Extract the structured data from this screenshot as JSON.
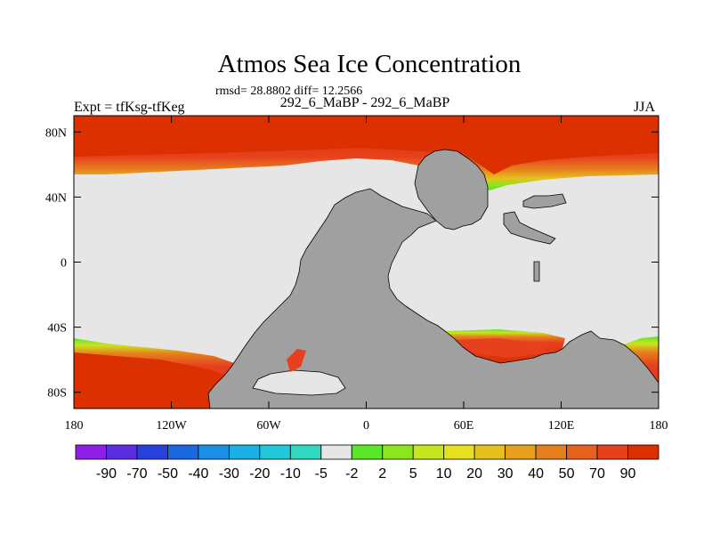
{
  "chart_data": {
    "type": "heatmap",
    "title": "Atmos Sea Ice Concentration",
    "stats": "rmsd= 28.8802 diff= 12.2566",
    "left_label": "Expt = tfKsg-tfKeg",
    "center_label": "292_6_MaBP - 292_6_MaBP",
    "right_label": "JJA",
    "x_ticks": [
      {
        "lon": -180,
        "label": "180"
      },
      {
        "lon": -120,
        "label": "120W"
      },
      {
        "lon": -60,
        "label": "60W"
      },
      {
        "lon": 0,
        "label": "0"
      },
      {
        "lon": 60,
        "label": "60E"
      },
      {
        "lon": 120,
        "label": "120E"
      },
      {
        "lon": 180,
        "label": "180"
      }
    ],
    "y_ticks": [
      {
        "lat": 80,
        "label": "80N"
      },
      {
        "lat": 40,
        "label": "40N"
      },
      {
        "lat": 0,
        "label": "0"
      },
      {
        "lat": -40,
        "label": "40S"
      },
      {
        "lat": -80,
        "label": "80S"
      }
    ],
    "lon_range": [
      -180,
      180
    ],
    "lat_range": [
      -90,
      90
    ],
    "colorbar": {
      "levels": [
        "-90",
        "-70",
        "-50",
        "-40",
        "-30",
        "-20",
        "-10",
        "-5",
        "-2",
        "2",
        "5",
        "10",
        "20",
        "30",
        "40",
        "50",
        "70",
        "90"
      ],
      "colors": [
        "#8c1ee6",
        "#5a2de0",
        "#2840dc",
        "#1a68e0",
        "#1a90e6",
        "#1ab0e6",
        "#20c8d8",
        "#30d8c0",
        "#e6e6e6",
        "#5ae62a",
        "#8ce61e",
        "#c8e61e",
        "#e6e01e",
        "#e6c01e",
        "#e6a01e",
        "#e6801e",
        "#e6601e",
        "#e6401e",
        "#dc3000"
      ]
    },
    "regions": {
      "arctic_ice": "90",
      "southern_ice": "90",
      "ocean_background": "-2 to 2",
      "land": "masked"
    }
  }
}
